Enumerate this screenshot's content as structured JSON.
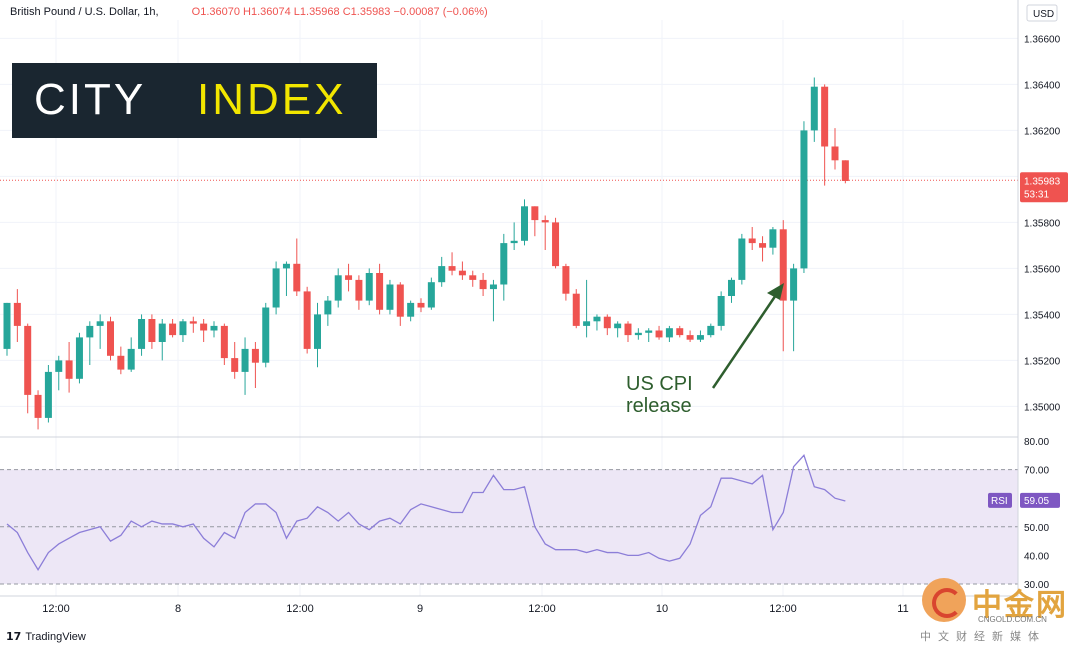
{
  "header": {
    "symbol": "British Pound / U.S. Dollar, 1h,",
    "ohlc": "O1.36070  H1.36074  L1.35968  C1.35983  −0.00087 (−0.06%)"
  },
  "logo": {
    "city": "CITY",
    "index": "INDEX"
  },
  "currency": "USD",
  "price_badge": {
    "price": "1.35983",
    "countdown": "53:31",
    "color": "#ef5350"
  },
  "rsi_badge": {
    "label": "RSI",
    "value": "59.05",
    "color": "#7e57c2"
  },
  "annotation": {
    "line1": "US CPI",
    "line2": "release",
    "color": "#2e5e2e"
  },
  "brand": {
    "tradingview": "TradingView"
  },
  "watermark": {
    "cn": "中金网",
    "site": "CNGOLD.COM.CN",
    "sub": "中文财经新媒体"
  },
  "colors": {
    "up": "#26a69a",
    "down": "#ef5350",
    "rsi_line": "#8c7ed8",
    "rsi_band": "#ede7f6"
  },
  "chart_data": [
    {
      "type": "candlestick",
      "title": "British Pound / U.S. Dollar, 1h",
      "ylim": [
        1.3487,
        1.3668
      ],
      "y_ticks": [
        1.35,
        1.352,
        1.354,
        1.356,
        1.358,
        1.36,
        1.362,
        1.364,
        1.366
      ],
      "y_tick_labels": [
        "1.35000",
        "1.35200",
        "1.35400",
        "1.35600",
        "1.35800",
        "1.36000",
        "1.36200",
        "1.36400",
        "1.36600"
      ],
      "x_labels": [
        "12:00",
        "8",
        "12:00",
        "9",
        "12:00",
        "10",
        "12:00",
        "11"
      ],
      "last_price": 1.35983,
      "candles": [
        [
          1.3525,
          1.3545,
          1.3522,
          1.3545
        ],
        [
          1.3545,
          1.3551,
          1.3528,
          1.3535
        ],
        [
          1.3535,
          1.3536,
          1.3497,
          1.3505
        ],
        [
          1.3505,
          1.3507,
          1.349,
          1.3495
        ],
        [
          1.3495,
          1.3518,
          1.3493,
          1.3515
        ],
        [
          1.3515,
          1.3522,
          1.3507,
          1.352
        ],
        [
          1.352,
          1.3528,
          1.3506,
          1.3512
        ],
        [
          1.3512,
          1.3532,
          1.351,
          1.353
        ],
        [
          1.353,
          1.3537,
          1.3518,
          1.3535
        ],
        [
          1.3535,
          1.354,
          1.3525,
          1.3537
        ],
        [
          1.3537,
          1.3539,
          1.352,
          1.3522
        ],
        [
          1.3522,
          1.3526,
          1.3514,
          1.3516
        ],
        [
          1.3516,
          1.353,
          1.3515,
          1.3525
        ],
        [
          1.3525,
          1.354,
          1.3522,
          1.3538
        ],
        [
          1.3538,
          1.354,
          1.3525,
          1.3528
        ],
        [
          1.3528,
          1.3538,
          1.352,
          1.3536
        ],
        [
          1.3536,
          1.3538,
          1.353,
          1.3531
        ],
        [
          1.3531,
          1.3538,
          1.3528,
          1.3537
        ],
        [
          1.3537,
          1.3539,
          1.3532,
          1.3536
        ],
        [
          1.3536,
          1.3538,
          1.3528,
          1.3533
        ],
        [
          1.3533,
          1.3537,
          1.353,
          1.3535
        ],
        [
          1.3535,
          1.3536,
          1.3518,
          1.3521
        ],
        [
          1.3521,
          1.3528,
          1.3512,
          1.3515
        ],
        [
          1.3515,
          1.353,
          1.3505,
          1.3525
        ],
        [
          1.3525,
          1.3528,
          1.3508,
          1.3519
        ],
        [
          1.3519,
          1.3545,
          1.3517,
          1.3543
        ],
        [
          1.3543,
          1.3563,
          1.354,
          1.356
        ],
        [
          1.356,
          1.3563,
          1.3548,
          1.3562
        ],
        [
          1.3562,
          1.3573,
          1.3548,
          1.355
        ],
        [
          1.355,
          1.3552,
          1.3523,
          1.3525
        ],
        [
          1.3525,
          1.3545,
          1.3517,
          1.354
        ],
        [
          1.354,
          1.3548,
          1.3535,
          1.3546
        ],
        [
          1.3546,
          1.356,
          1.3543,
          1.3557
        ],
        [
          1.3557,
          1.3562,
          1.355,
          1.3555
        ],
        [
          1.3555,
          1.3557,
          1.3542,
          1.3546
        ],
        [
          1.3546,
          1.356,
          1.3544,
          1.3558
        ],
        [
          1.3558,
          1.3562,
          1.354,
          1.3542
        ],
        [
          1.3542,
          1.3555,
          1.354,
          1.3553
        ],
        [
          1.3553,
          1.3554,
          1.3535,
          1.3539
        ],
        [
          1.3539,
          1.3546,
          1.3537,
          1.3545
        ],
        [
          1.3545,
          1.3547,
          1.3541,
          1.3543
        ],
        [
          1.3543,
          1.3556,
          1.3542,
          1.3554
        ],
        [
          1.3554,
          1.3565,
          1.3552,
          1.3561
        ],
        [
          1.3561,
          1.3567,
          1.3557,
          1.3559
        ],
        [
          1.3559,
          1.3563,
          1.3555,
          1.3557
        ],
        [
          1.3557,
          1.3559,
          1.3552,
          1.3555
        ],
        [
          1.3555,
          1.3558,
          1.3548,
          1.3551
        ],
        [
          1.3551,
          1.3555,
          1.3537,
          1.3553
        ],
        [
          1.3553,
          1.3575,
          1.3546,
          1.3571
        ],
        [
          1.3571,
          1.358,
          1.3568,
          1.3572
        ],
        [
          1.3572,
          1.359,
          1.357,
          1.3587
        ],
        [
          1.3587,
          1.3587,
          1.3574,
          1.3581
        ],
        [
          1.3581,
          1.3583,
          1.3568,
          1.358
        ],
        [
          1.358,
          1.3582,
          1.356,
          1.3561
        ],
        [
          1.3561,
          1.3562,
          1.3546,
          1.3549
        ],
        [
          1.3549,
          1.3551,
          1.3534,
          1.3535
        ],
        [
          1.3535,
          1.3555,
          1.353,
          1.3537
        ],
        [
          1.3537,
          1.354,
          1.3533,
          1.3539
        ],
        [
          1.3539,
          1.354,
          1.3531,
          1.3534
        ],
        [
          1.3534,
          1.3537,
          1.353,
          1.3536
        ],
        [
          1.3536,
          1.3537,
          1.3528,
          1.3531
        ],
        [
          1.3531,
          1.3534,
          1.3529,
          1.3532
        ],
        [
          1.3532,
          1.3534,
          1.3528,
          1.3533
        ],
        [
          1.3533,
          1.3535,
          1.3529,
          1.353
        ],
        [
          1.353,
          1.3535,
          1.3528,
          1.3534
        ],
        [
          1.3534,
          1.3535,
          1.353,
          1.3531
        ],
        [
          1.3531,
          1.3533,
          1.3528,
          1.3529
        ],
        [
          1.3529,
          1.3533,
          1.3528,
          1.3531
        ],
        [
          1.3531,
          1.3536,
          1.353,
          1.3535
        ],
        [
          1.3535,
          1.355,
          1.3533,
          1.3548
        ],
        [
          1.3548,
          1.3556,
          1.3545,
          1.3555
        ],
        [
          1.3555,
          1.3575,
          1.3553,
          1.3573
        ],
        [
          1.3573,
          1.3578,
          1.3568,
          1.3571
        ],
        [
          1.3571,
          1.3574,
          1.3563,
          1.3569
        ],
        [
          1.3569,
          1.3578,
          1.3566,
          1.3577
        ],
        [
          1.3577,
          1.3581,
          1.3524,
          1.3546
        ],
        [
          1.3546,
          1.3562,
          1.3524,
          1.356
        ],
        [
          1.356,
          1.3624,
          1.3558,
          1.362
        ],
        [
          1.362,
          1.3643,
          1.3615,
          1.3639
        ],
        [
          1.3639,
          1.364,
          1.3596,
          1.3613
        ],
        [
          1.3613,
          1.3621,
          1.3603,
          1.3607
        ],
        [
          1.3607,
          1.3607,
          1.3597,
          1.3598
        ]
      ]
    },
    {
      "type": "line",
      "title": "RSI",
      "ylim": [
        27,
        82
      ],
      "y_ticks": [
        30,
        40,
        50,
        60,
        70,
        80
      ],
      "y_tick_labels": [
        "30.00",
        "40.00",
        "50.00",
        "60.00",
        "70.00",
        "80.00"
      ],
      "band": [
        30,
        70
      ],
      "midline": 50,
      "last_value": 59.05,
      "values": [
        51,
        48,
        41,
        35,
        41,
        44,
        46,
        48,
        49,
        50,
        45,
        47,
        52,
        50,
        52,
        51,
        51,
        50,
        51,
        46,
        43,
        48,
        46,
        55,
        58,
        58,
        55,
        46,
        52,
        53,
        57,
        55,
        52,
        55,
        51,
        49,
        52,
        53,
        51,
        56,
        58,
        57,
        56,
        55,
        55,
        62,
        62,
        68,
        63,
        63,
        64,
        50,
        44,
        42,
        42,
        42,
        41,
        42,
        41,
        41,
        40,
        40,
        41,
        39,
        38,
        39,
        44,
        54,
        57,
        67,
        67,
        66,
        65,
        68,
        49,
        55,
        71,
        75,
        64,
        63,
        60,
        59
      ]
    }
  ]
}
